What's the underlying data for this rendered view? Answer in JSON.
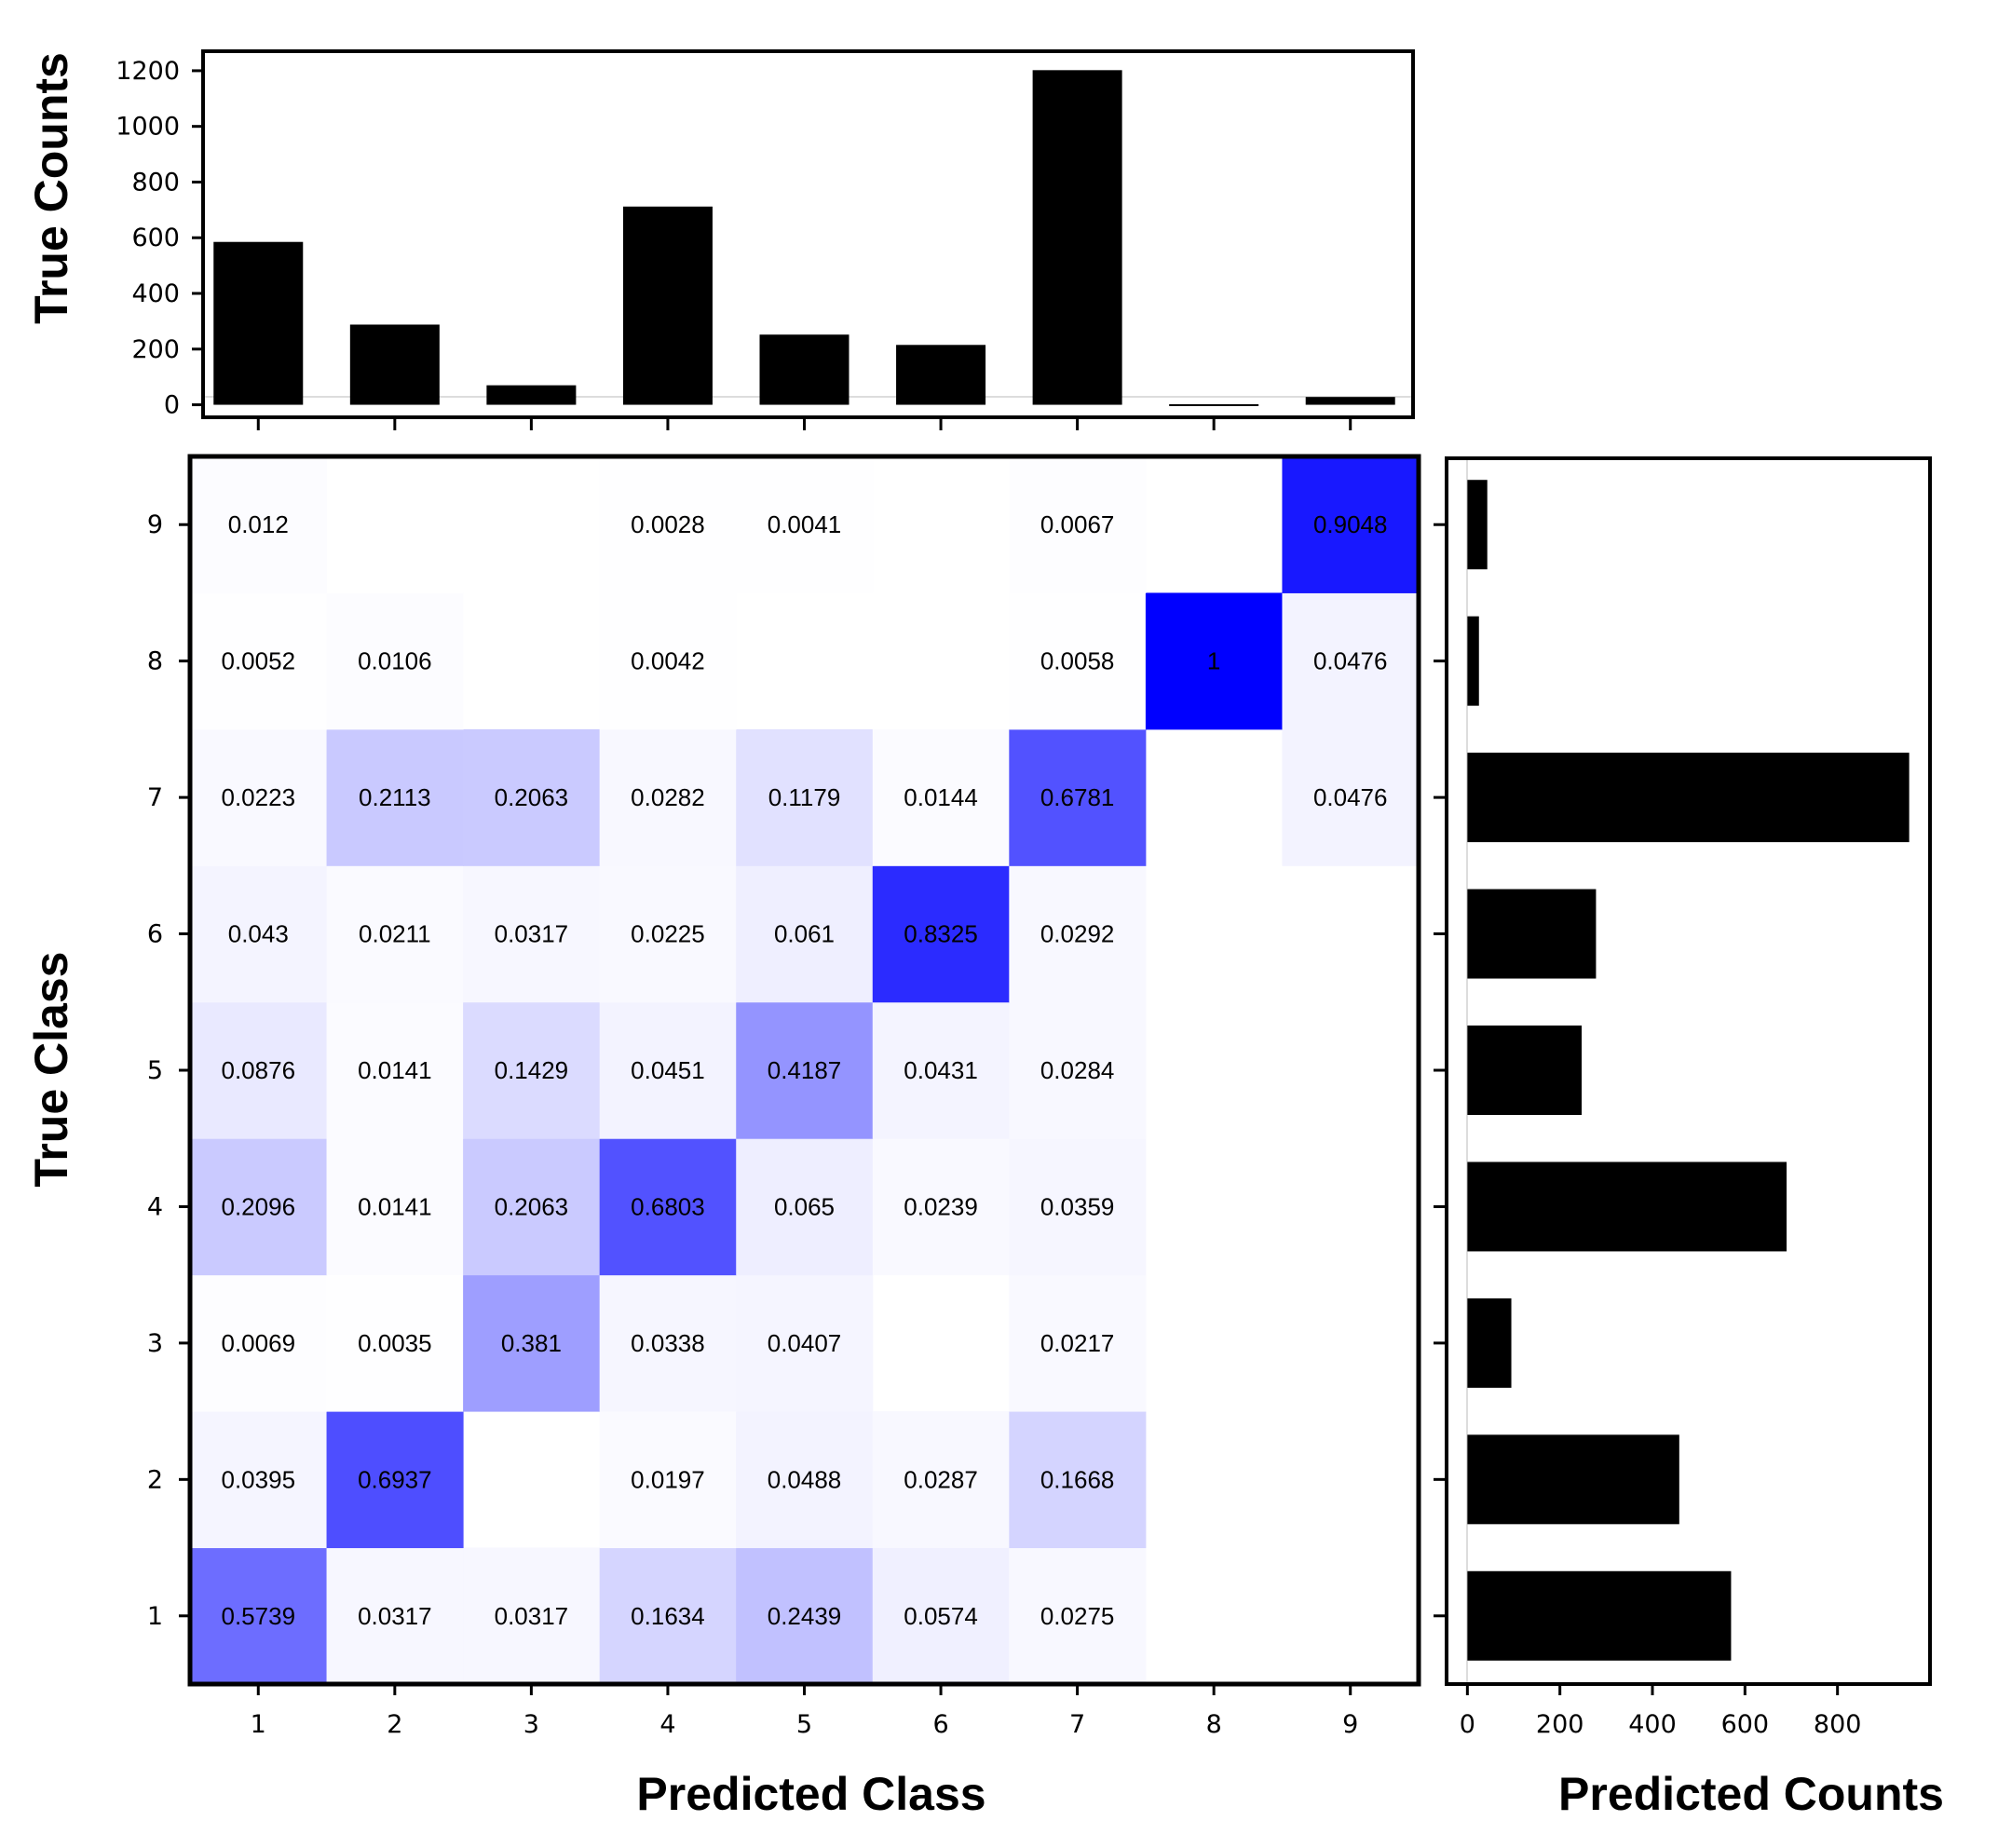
{
  "chart_data": {
    "type": "heatmap",
    "title": "",
    "xlabel": "Predicted Class",
    "ylabel": "True Class",
    "x_categories": [
      "1",
      "2",
      "3",
      "4",
      "5",
      "6",
      "7",
      "8",
      "9"
    ],
    "y_categories": [
      "1",
      "2",
      "3",
      "4",
      "5",
      "6",
      "7",
      "8",
      "9"
    ],
    "value_range": [
      0,
      1
    ],
    "color_low": "#ffffff",
    "color_high": "#0000ff",
    "cells": [
      [
        0.5739,
        0.0317,
        0.0317,
        0.1634,
        0.2439,
        0.0574,
        0.0275,
        null,
        null
      ],
      [
        0.0395,
        0.6937,
        null,
        0.0197,
        0.0488,
        0.0287,
        0.1668,
        null,
        null
      ],
      [
        0.0069,
        0.0035,
        0.381,
        0.0338,
        0.0407,
        null,
        0.0217,
        null,
        null
      ],
      [
        0.2096,
        0.0141,
        0.2063,
        0.6803,
        0.065,
        0.0239,
        0.0359,
        null,
        null
      ],
      [
        0.0876,
        0.0141,
        0.1429,
        0.0451,
        0.4187,
        0.0431,
        0.0284,
        null,
        null
      ],
      [
        0.043,
        0.0211,
        0.0317,
        0.0225,
        0.061,
        0.8325,
        0.0292,
        null,
        null
      ],
      [
        0.0223,
        0.2113,
        0.2063,
        0.0282,
        0.1179,
        0.0144,
        0.6781,
        null,
        0.0476
      ],
      [
        0.0052,
        0.0106,
        null,
        0.0042,
        null,
        null,
        0.0058,
        1,
        0.0476
      ],
      [
        0.012,
        null,
        null,
        0.0028,
        0.0041,
        null,
        0.0067,
        null,
        0.9048
      ]
    ],
    "cell_labels": [
      [
        "0.5739",
        "0.0317",
        "0.0317",
        "0.1634",
        "0.2439",
        "0.0574",
        "0.0275",
        "",
        ""
      ],
      [
        "0.0395",
        "0.6937",
        "",
        "0.0197",
        "0.0488",
        "0.0287",
        "0.1668",
        "",
        ""
      ],
      [
        "0.0069",
        "0.0035",
        "0.381",
        "0.0338",
        "0.0407",
        "",
        "0.0217",
        "",
        ""
      ],
      [
        "0.2096",
        "0.0141",
        "0.2063",
        "0.6803",
        "0.065",
        "0.0239",
        "0.0359",
        "",
        ""
      ],
      [
        "0.0876",
        "0.0141",
        "0.1429",
        "0.0451",
        "0.4187",
        "0.0431",
        "0.0284",
        "",
        ""
      ],
      [
        "0.043",
        "0.0211",
        "0.0317",
        "0.0225",
        "0.061",
        "0.8325",
        "0.0292",
        "",
        ""
      ],
      [
        "0.0223",
        "0.2113",
        "0.2063",
        "0.0282",
        "0.1179",
        "0.0144",
        "0.6781",
        "",
        "0.0476"
      ],
      [
        "0.0052",
        "0.0106",
        "",
        "0.0042",
        "",
        "",
        "0.0058",
        "1",
        "0.0476"
      ],
      [
        "0.012",
        "",
        "",
        "0.0028",
        "0.0041",
        "",
        "0.0067",
        "",
        "0.9048"
      ]
    ],
    "true_counts": {
      "type": "bar",
      "ylabel": "True Counts",
      "categories": [
        "1",
        "2",
        "3",
        "4",
        "5",
        "6",
        "7",
        "8",
        "9"
      ],
      "values": [
        585,
        288,
        70,
        712,
        252,
        215,
        1202,
        2,
        28
      ],
      "ylim": [
        -45,
        1270
      ],
      "yticks": [
        "0",
        "200",
        "400",
        "600",
        "800",
        "1000",
        "1200"
      ]
    },
    "predicted_counts": {
      "type": "bar",
      "orientation": "horizontal",
      "xlabel": "Predicted Counts",
      "categories": [
        "1",
        "2",
        "3",
        "4",
        "5",
        "6",
        "7",
        "8",
        "9"
      ],
      "values": [
        570,
        458,
        95,
        690,
        247,
        278,
        955,
        25,
        43
      ],
      "xlim": [
        -45,
        1000
      ],
      "xticks": [
        "0",
        "200",
        "400",
        "600",
        "800"
      ]
    }
  }
}
